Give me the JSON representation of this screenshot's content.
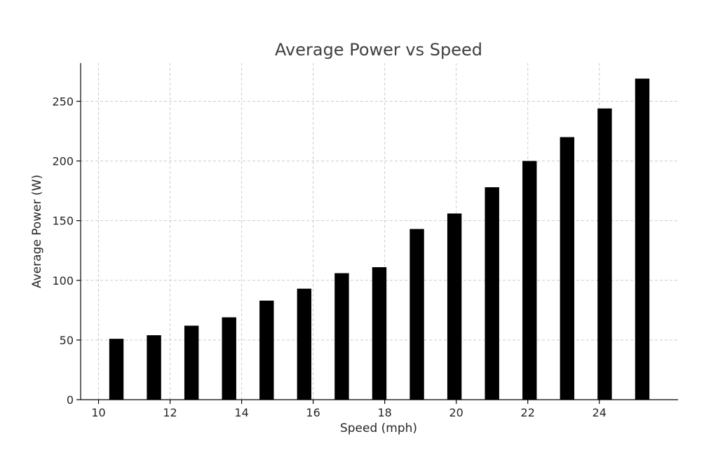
{
  "chart_data": {
    "type": "bar",
    "title": "Average Power vs Speed",
    "xlabel": "Speed (mph)",
    "ylabel": "Average Power (W)",
    "x": [
      10.5,
      11.55,
      12.6,
      13.65,
      14.7,
      15.75,
      16.8,
      17.85,
      18.9,
      19.95,
      21.0,
      22.05,
      23.1,
      24.15,
      25.2
    ],
    "values": [
      51,
      54,
      62,
      69,
      83,
      93,
      106,
      111,
      143,
      156,
      178,
      200,
      220,
      244,
      269
    ],
    "bar_width": 0.4,
    "xlim": [
      9.5,
      26.2
    ],
    "ylim": [
      0,
      282
    ],
    "xticks": [
      10,
      12,
      14,
      16,
      18,
      20,
      22,
      24
    ],
    "yticks": [
      0,
      50,
      100,
      150,
      200,
      250
    ],
    "xtick_labels": [
      "10",
      "12",
      "14",
      "16",
      "18",
      "20",
      "22",
      "24"
    ],
    "ytick_labels": [
      "0",
      "50",
      "100",
      "150",
      "200",
      "250"
    ],
    "grid": true,
    "bar_color": "#000000",
    "grid_color": "#cccccc"
  }
}
